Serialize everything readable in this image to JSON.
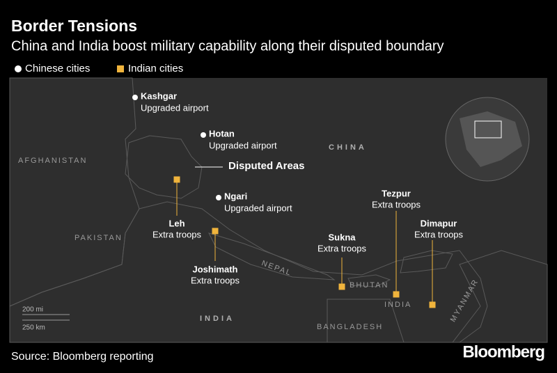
{
  "header": {
    "title": "Border Tensions",
    "subtitle": "China and India boost military capability along their disputed boundary"
  },
  "legend": [
    {
      "label": "Chinese cities"
    },
    {
      "label": "Indian cities"
    }
  ],
  "map": {
    "countries": [
      "CHINA",
      "AFGHANISTAN",
      "PAKISTAN",
      "NEPAL",
      "BHUTAN",
      "INDIA",
      "INDIA",
      "BANGLADESH",
      "MYANMAR"
    ],
    "disputed_label": "Disputed Areas",
    "scale": [
      "200 mi",
      "250 km"
    ],
    "chinese_cities": [
      {
        "name": "Kashgar",
        "note": "Upgraded airport"
      },
      {
        "name": "Hotan",
        "note": "Upgraded airport"
      },
      {
        "name": "Ngari",
        "note": "Upgraded airport"
      }
    ],
    "indian_cities": [
      {
        "name": "Leh",
        "note": "Extra troops"
      },
      {
        "name": "Joshimath",
        "note": "Extra troops"
      },
      {
        "name": "Sukna",
        "note": "Extra troops"
      },
      {
        "name": "Tezpur",
        "note": "Extra troops"
      },
      {
        "name": "Dimapur",
        "note": "Extra troops"
      }
    ]
  },
  "footer": {
    "source": "Source: Bloomberg reporting",
    "brand": "Bloomberg"
  }
}
